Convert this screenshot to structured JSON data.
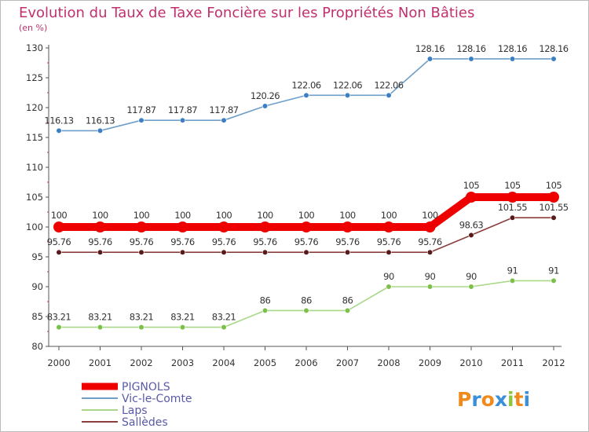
{
  "chart_data": {
    "type": "line",
    "title": "Evolution du Taux de Taxe Foncière sur les Propriétés Non Bâties",
    "subtitle": "(en %)",
    "x": [
      2000,
      2001,
      2002,
      2003,
      2004,
      2005,
      2006,
      2007,
      2008,
      2009,
      2010,
      2011,
      2012
    ],
    "ylim": [
      80,
      130
    ],
    "yticks": [
      80,
      85,
      90,
      95,
      100,
      105,
      110,
      115,
      120,
      125,
      130
    ],
    "grid": false,
    "legend": "bottom-left",
    "series": [
      {
        "name": "Vic-le-Comte",
        "color": "#6f9fc9",
        "marker_color": "#3d7fc4",
        "values": [
          116.13,
          116.13,
          117.87,
          117.87,
          117.87,
          120.26,
          122.06,
          122.06,
          122.06,
          128.16,
          128.16,
          128.16,
          128.16
        ],
        "labels": [
          "116.13",
          "116.13",
          "117.87",
          "117.87",
          "117.87",
          "120.26",
          "122.06",
          "122.06",
          "122.06",
          "128.16",
          "128.16",
          "128.16",
          "128.16"
        ]
      },
      {
        "name": "Sallèdes",
        "color": "#8b3e3e",
        "marker_color": "#5a1a1a",
        "values": [
          95.76,
          95.76,
          95.76,
          95.76,
          95.76,
          95.76,
          95.76,
          95.76,
          95.76,
          95.76,
          98.63,
          101.55,
          101.55
        ],
        "labels": [
          "95.76",
          "95.76",
          "95.76",
          "95.76",
          "95.76",
          "95.76",
          "95.76",
          "95.76",
          "95.76",
          "95.76",
          "98.63",
          "101.55",
          "101.55"
        ]
      },
      {
        "name": "Laps",
        "color": "#a8d888",
        "marker_color": "#7cc04a",
        "values": [
          83.21,
          83.21,
          83.21,
          83.21,
          83.21,
          86,
          86,
          86,
          90,
          90,
          90,
          91,
          91
        ],
        "labels": [
          "83.21",
          "83.21",
          "83.21",
          "83.21",
          "83.21",
          "86",
          "86",
          "86",
          "90",
          "90",
          "90",
          "91",
          "91"
        ]
      },
      {
        "name": "PIGNOLS",
        "color": "#ee0000",
        "marker_color": "#ee0000",
        "thick": true,
        "values": [
          100,
          100,
          100,
          100,
          100,
          100,
          100,
          100,
          100,
          100,
          105,
          105,
          105
        ],
        "labels": [
          "100",
          "100",
          "100",
          "100",
          "100",
          "100",
          "100",
          "100",
          "100",
          "100",
          "105",
          "105",
          "105"
        ]
      }
    ],
    "legend_order": [
      "PIGNOLS",
      "Vic-le-Comte",
      "Laps",
      "Sallèdes"
    ]
  },
  "logo": {
    "text": "Proxiti"
  },
  "colors": {
    "title": "#c0306e",
    "axis": "#555555",
    "legend_text": "#5a5aa8"
  }
}
